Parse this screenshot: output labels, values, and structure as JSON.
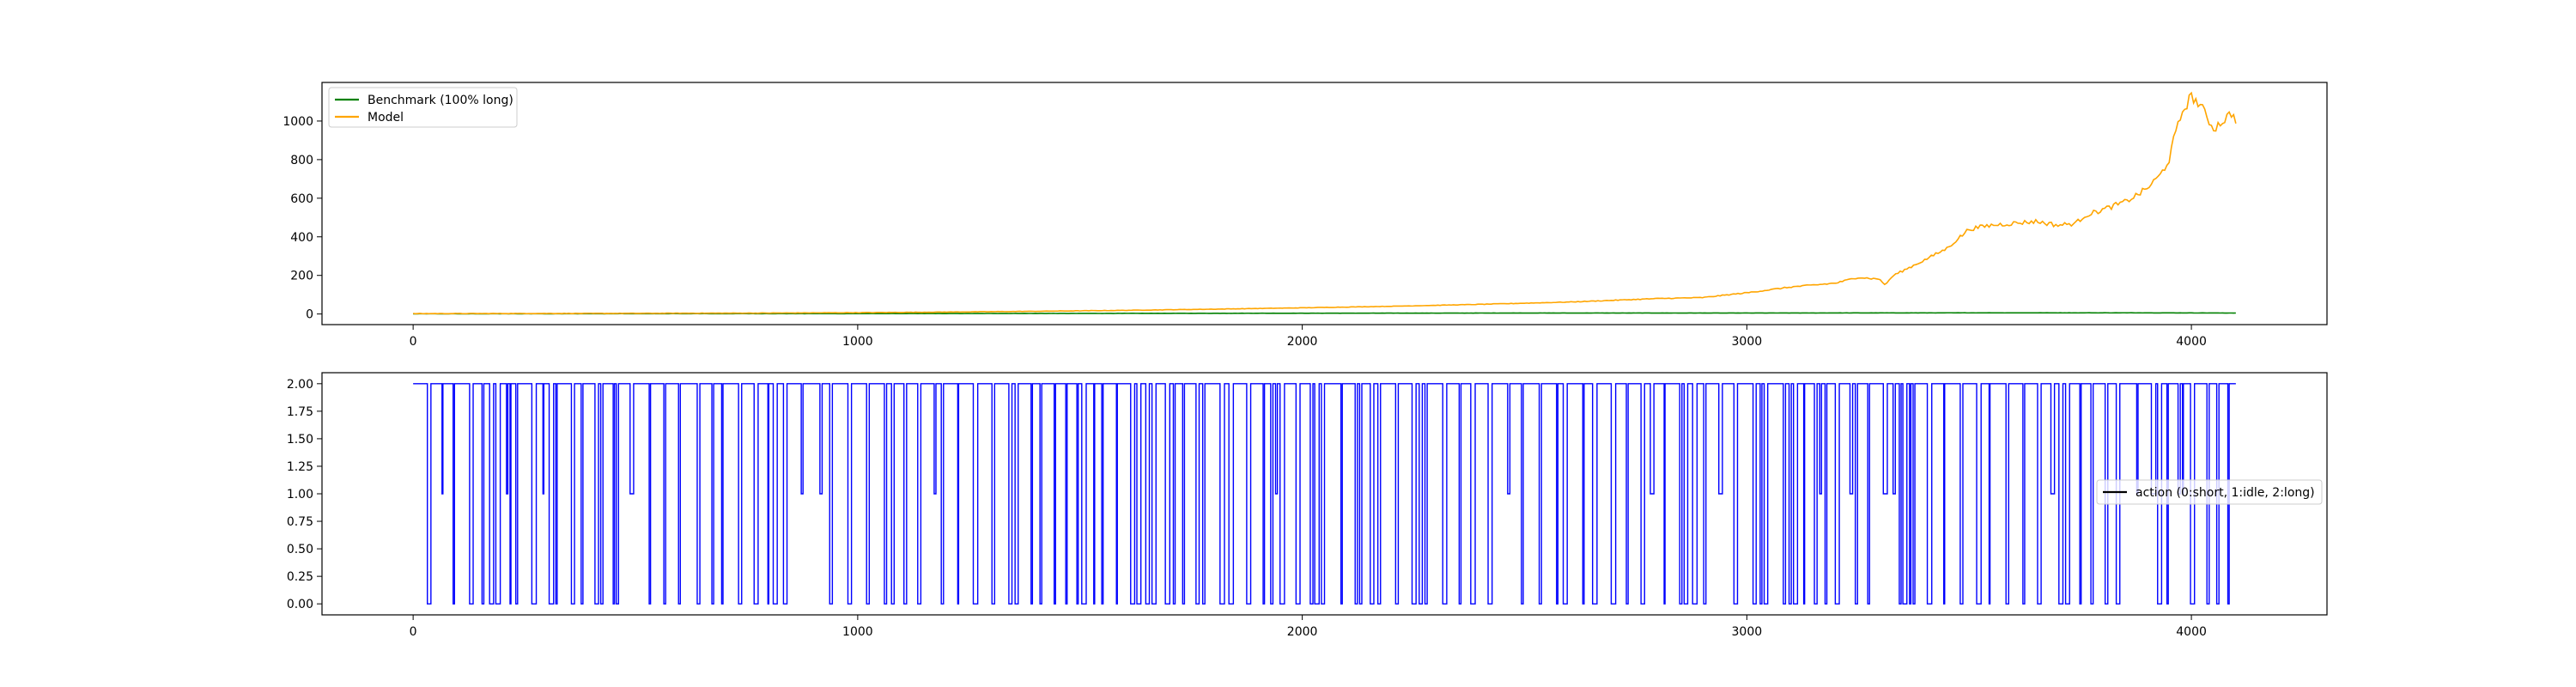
{
  "chart_data": [
    {
      "type": "line",
      "title": "",
      "xlabel": "",
      "ylabel": "",
      "xlim": [
        -205,
        4305
      ],
      "ylim": [
        -55,
        1200
      ],
      "xticks": [
        0,
        1000,
        2000,
        3000,
        4000
      ],
      "yticks": [
        0,
        200,
        400,
        600,
        800,
        1000
      ],
      "grid": false,
      "legend": {
        "placement": "top-left"
      },
      "colors": {
        "benchmark": "#008000",
        "model": "#ffa500"
      },
      "series": [
        {
          "name": "Benchmark (100% long)",
          "x": [
            0,
            500,
            1000,
            1500,
            2000,
            2500,
            3000,
            3500,
            3900,
            4100
          ],
          "y": [
            1,
            1.5,
            2,
            3,
            4,
            5,
            5,
            6,
            6,
            5
          ]
        },
        {
          "name": "Model",
          "x": [
            0,
            200,
            400,
            600,
            800,
            1000,
            1200,
            1400,
            1600,
            1800,
            2000,
            2200,
            2400,
            2600,
            2800,
            2900,
            3000,
            3100,
            3200,
            3250,
            3300,
            3310,
            3330,
            3400,
            3450,
            3480,
            3500,
            3550,
            3600,
            3650,
            3700,
            3740,
            3760,
            3800,
            3850,
            3880,
            3900,
            3930,
            3950,
            3960,
            3980,
            4000,
            4020,
            4050,
            4070,
            4090,
            4100
          ],
          "y": [
            2,
            2.5,
            3,
            4,
            5,
            7,
            10,
            14,
            19,
            25,
            32,
            40,
            50,
            62,
            80,
            85,
            110,
            140,
            160,
            190,
            180,
            150,
            200,
            280,
            340,
            400,
            440,
            460,
            470,
            480,
            460,
            470,
            510,
            540,
            580,
            620,
            650,
            720,
            800,
            900,
            1050,
            1130,
            1080,
            960,
            1000,
            1040,
            1010
          ]
        }
      ]
    },
    {
      "type": "line",
      "subtype": "step",
      "title": "",
      "xlabel": "",
      "ylabel": "",
      "xlim": [
        -205,
        4305
      ],
      "ylim": [
        -0.1,
        2.1
      ],
      "xticks": [
        0,
        1000,
        2000,
        3000,
        4000
      ],
      "yticks": [
        "0.00",
        "0.25",
        "0.50",
        "0.75",
        "1.00",
        "1.25",
        "1.50",
        "1.75",
        "2.00"
      ],
      "grid": false,
      "legend": {
        "placement": "center-right"
      },
      "colors": {
        "action": "#0000ff"
      },
      "series": [
        {
          "name": "action (0:short, 1:idle, 2:long)",
          "x_range": [
            0,
            4100
          ],
          "values": [
            0,
            1,
            2
          ],
          "dominant_value": 2,
          "description_of_pattern": "step series alternating mostly between 2 and 0, occasional 1"
        }
      ]
    }
  ]
}
